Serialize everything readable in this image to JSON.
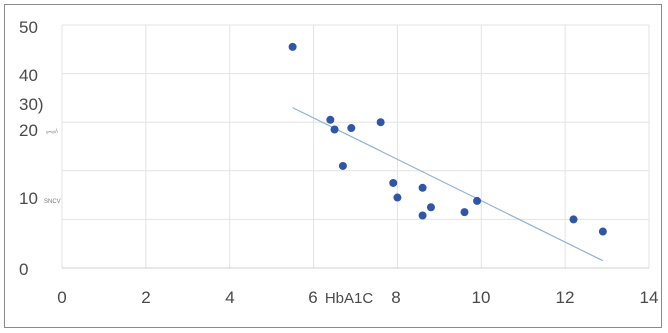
{
  "chart_data": {
    "type": "scatter",
    "x_ticks": [
      "0",
      "2",
      "4",
      "6",
      "8",
      "10",
      "12",
      "14"
    ],
    "y_ticks": [
      "50",
      "40",
      "30)",
      "20",
      "10",
      "0"
    ],
    "xlabel": "HbA1C",
    "y_small_labels": [
      "ᵤₘₒₗ/ₗ",
      "SNCV"
    ],
    "xlim": [
      0,
      14
    ],
    "ylim": [
      0,
      50
    ],
    "grid": true,
    "series": [
      {
        "points": [
          [
            5.5,
            45.5
          ],
          [
            6.4,
            30.5
          ],
          [
            6.5,
            28.5
          ],
          [
            6.9,
            28.8
          ],
          [
            7.6,
            30.0
          ],
          [
            6.7,
            21.0
          ],
          [
            7.9,
            17.5
          ],
          [
            8.0,
            14.5
          ],
          [
            8.6,
            16.5
          ],
          [
            8.6,
            10.8
          ],
          [
            8.8,
            12.5
          ],
          [
            9.6,
            11.5
          ],
          [
            9.9,
            13.8
          ],
          [
            12.2,
            10.0
          ],
          [
            12.9,
            7.5
          ]
        ],
        "color": "#2f56a8"
      }
    ],
    "trendline": {
      "x": [
        5.5,
        12.9
      ],
      "y": [
        33.0,
        1.5
      ],
      "color": "#8fb2d6"
    }
  }
}
